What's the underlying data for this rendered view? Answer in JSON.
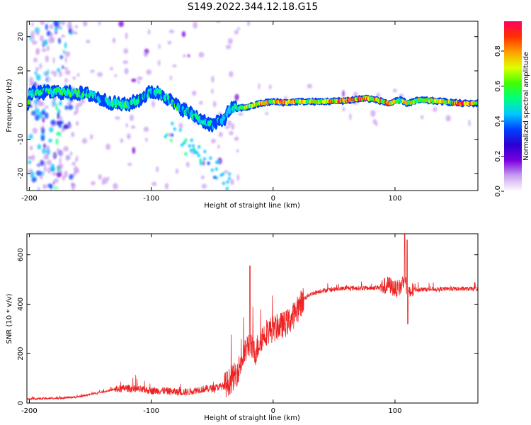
{
  "figure_title": "S149.2022.344.12.18.G15",
  "chart_data": [
    {
      "type": "heatmap",
      "xlabel": "Height of straight line (km)",
      "ylabel": "Frequency (Hz)",
      "xlim": [
        -202,
        168
      ],
      "ylim": [
        -25,
        24.5
      ],
      "xticks": [
        -200,
        -100,
        0,
        100
      ],
      "yticks": [
        -20,
        -10,
        0,
        10,
        20
      ],
      "colorbar": {
        "label": "Normalized spectral amplitude",
        "range": [
          0,
          0.97
        ],
        "ticks": [
          0.0,
          0.2,
          0.4,
          0.6,
          0.8
        ],
        "colormap": [
          "#ffffff",
          "#c9a0f0",
          "#7a00e0",
          "#2a00d0",
          "#0040ff",
          "#00c8ff",
          "#00ff80",
          "#40ff00",
          "#e0ff00",
          "#ffa000",
          "#ff3000",
          "#ff0060"
        ]
      },
      "ridge": [
        {
          "x": -200,
          "f": 3.5,
          "a": 0.5
        },
        {
          "x": -180,
          "f": 3.8,
          "a": 0.55
        },
        {
          "x": -160,
          "f": 3.5,
          "a": 0.55
        },
        {
          "x": -150,
          "f": 3.0,
          "a": 0.5
        },
        {
          "x": -140,
          "f": 1.5,
          "a": 0.45
        },
        {
          "x": -130,
          "f": 0.5,
          "a": 0.5
        },
        {
          "x": -120,
          "f": 0.0,
          "a": 0.5
        },
        {
          "x": -110,
          "f": 1.5,
          "a": 0.5
        },
        {
          "x": -100,
          "f": 4.0,
          "a": 0.45
        },
        {
          "x": -90,
          "f": 3.0,
          "a": 0.5
        },
        {
          "x": -80,
          "f": 0.0,
          "a": 0.5
        },
        {
          "x": -70,
          "f": -2.0,
          "a": 0.5
        },
        {
          "x": -60,
          "f": -4.0,
          "a": 0.5
        },
        {
          "x": -50,
          "f": -6.0,
          "a": 0.45
        },
        {
          "x": -40,
          "f": -4.0,
          "a": 0.45
        },
        {
          "x": -35,
          "f": -1.0,
          "a": 0.5
        },
        {
          "x": -30,
          "f": -1.0,
          "a": 0.6
        },
        {
          "x": -20,
          "f": -0.5,
          "a": 0.7
        },
        {
          "x": -10,
          "f": 0.5,
          "a": 0.75
        },
        {
          "x": 0,
          "f": 1.0,
          "a": 0.7
        },
        {
          "x": 10,
          "f": 0.7,
          "a": 0.9
        },
        {
          "x": 20,
          "f": 1.0,
          "a": 0.7
        },
        {
          "x": 40,
          "f": 1.0,
          "a": 0.7
        },
        {
          "x": 60,
          "f": 1.3,
          "a": 0.9
        },
        {
          "x": 75,
          "f": 2.0,
          "a": 0.8
        },
        {
          "x": 85,
          "f": 1.5,
          "a": 0.7
        },
        {
          "x": 95,
          "f": 0.5,
          "a": 0.75
        },
        {
          "x": 105,
          "f": 1.5,
          "a": 0.6
        },
        {
          "x": 110,
          "f": 0.5,
          "a": 0.7
        },
        {
          "x": 120,
          "f": 1.5,
          "a": 0.7
        },
        {
          "x": 140,
          "f": 1.0,
          "a": 0.7
        },
        {
          "x": 155,
          "f": 0.5,
          "a": 0.9
        },
        {
          "x": 168,
          "f": 0.5,
          "a": 0.8
        }
      ]
    },
    {
      "type": "line",
      "xlabel": "Height of straight line (km)",
      "ylabel": "SNR (10 * v/v)",
      "xlim": [
        -202,
        168
      ],
      "ylim": [
        0,
        685
      ],
      "xticks": [
        -200,
        -100,
        0,
        100
      ],
      "yticks": [
        0,
        200,
        400,
        600
      ],
      "series": [
        {
          "color": "#ee2222",
          "x": [
            -202,
            -190,
            -175,
            -160,
            -150,
            -140,
            -130,
            -120,
            -110,
            -100,
            -90,
            -80,
            -70,
            -60,
            -50,
            -40,
            -35,
            -30,
            -25,
            -20,
            -15,
            -10,
            -5,
            0,
            5,
            10,
            15,
            20,
            25,
            30,
            40,
            50,
            60,
            70,
            80,
            90,
            95,
            100,
            105,
            108,
            110,
            115,
            120,
            130,
            140,
            150,
            160,
            168
          ],
          "y": [
            15,
            18,
            20,
            25,
            35,
            45,
            55,
            60,
            55,
            50,
            50,
            45,
            45,
            55,
            60,
            70,
            90,
            120,
            180,
            240,
            200,
            260,
            290,
            300,
            310,
            320,
            340,
            380,
            420,
            440,
            455,
            460,
            465,
            465,
            465,
            470,
            480,
            460,
            470,
            520,
            430,
            460,
            460,
            460,
            462,
            462,
            462,
            462
          ]
        }
      ]
    }
  ]
}
